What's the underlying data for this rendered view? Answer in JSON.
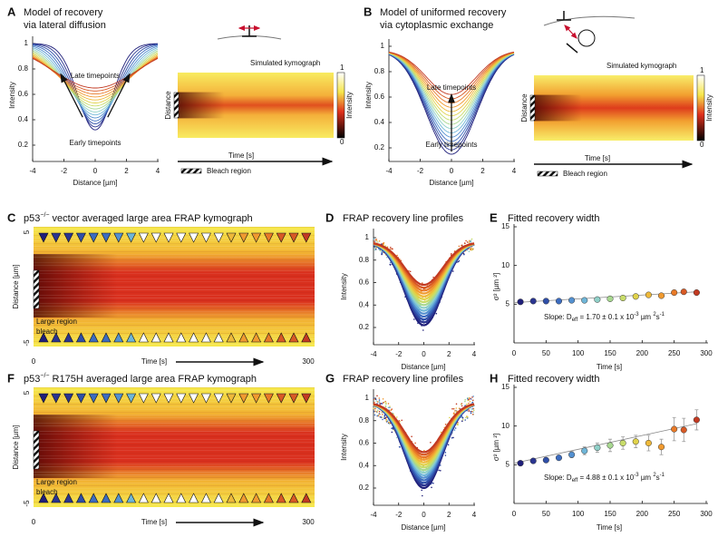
{
  "panels": {
    "A": {
      "label": "A",
      "title": [
        "Model of recovery",
        "via lateral diffusion"
      ],
      "y_label": "Intensity",
      "x_label": "Distance [µm]",
      "yticks": [
        1,
        0.8,
        0.6,
        0.4,
        0.2
      ],
      "xticks": [
        -4,
        -2,
        0,
        2,
        4
      ],
      "late": "Late timepoints",
      "early": "Early timepoints",
      "kymo_title": "Simulated kymograph",
      "kymo_y_label": "Distance",
      "colorbar_label": "Intensity",
      "colorbar_ticks": [
        1,
        0
      ],
      "time_label": "Time [s]",
      "bleach_label": "Bleach region"
    },
    "B": {
      "label": "B",
      "title": [
        "Model of uniformed recovery",
        "via cytoplasmic exchange"
      ],
      "y_label": "Intensity",
      "x_label": "Distance [µm]",
      "yticks": [
        1,
        0.8,
        0.6,
        0.4,
        0.2
      ],
      "xticks": [
        -4,
        -2,
        0,
        2,
        4
      ],
      "late": "Late timepoints",
      "early": "Early timepoints",
      "kymo_title": "Simulated kymograph",
      "kymo_y_label": "Distance",
      "colorbar_label": "Intensity",
      "colorbar_ticks": [
        1,
        0
      ],
      "time_label": "Time [s]",
      "bleach_label": "Bleach region"
    },
    "C": {
      "label": "C",
      "title": {
        "prefix": "p53",
        "sup": "−/−",
        "rest": " vector averaged large area FRAP kymograph"
      },
      "y_label": "Distance [µm]",
      "yticks": [
        5,
        -5
      ],
      "bleach_label": [
        "Large region",
        "bleach"
      ],
      "x_start": 0,
      "time_label": "Time [s]",
      "x_end": 300
    },
    "F": {
      "label": "F",
      "title": {
        "prefix": "p53",
        "sup": "−/−",
        "rest": " R175H averaged large area FRAP kymograph"
      },
      "y_label": "Distance [µm]",
      "yticks": [
        5,
        -5
      ],
      "bleach_label": [
        "Large region",
        "bleach"
      ],
      "x_start": 0,
      "time_label": "Time [s]",
      "x_end": 300
    },
    "D": {
      "label": "D",
      "title": "FRAP recovery line profiles",
      "y_label": "Intensity",
      "x_label": "Distance [µm]",
      "yticks": [
        1,
        0.8,
        0.6,
        0.4,
        0.2
      ],
      "xticks": [
        -4,
        -2,
        0,
        2,
        4
      ]
    },
    "G": {
      "label": "G",
      "title": "FRAP recovery line profiles",
      "y_label": "Intensity",
      "x_label": "Distance [µm]",
      "yticks": [
        1,
        0.8,
        0.6,
        0.4,
        0.2
      ],
      "xticks": [
        -4,
        -2,
        0,
        2,
        4
      ]
    }
  },
  "chart_data": [
    {
      "type": "scatter",
      "label": "E",
      "title": "Fitted recovery width",
      "x_label": "Time [s]",
      "y_label": "σ² [µm ²]",
      "x": [
        10,
        30,
        50,
        70,
        90,
        110,
        130,
        150,
        170,
        190,
        210,
        230,
        250,
        265,
        285
      ],
      "values": [
        5.3,
        5.4,
        5.4,
        5.4,
        5.5,
        5.5,
        5.6,
        5.7,
        5.8,
        6.0,
        6.2,
        6.1,
        6.5,
        6.6,
        6.5
      ],
      "fit": {
        "x": [
          0,
          285
        ],
        "values": [
          5.2,
          6.6
        ]
      },
      "xlim": [
        0,
        300
      ],
      "ylim": [
        0,
        15
      ],
      "xticks": [
        0,
        50,
        100,
        150,
        200,
        250,
        300
      ],
      "yticks": [
        5,
        10,
        15
      ],
      "slope_parts": [
        "Slope: D",
        "eff",
        " = 1.70 ± 0.1 x 10",
        "-3",
        " µm ",
        "2",
        "s",
        "-1"
      ],
      "colors": [
        "#1f1f7a",
        "#2a3590",
        "#2f4fa8",
        "#3c6cc0",
        "#5390d0",
        "#6fb6d8",
        "#8fd0c8",
        "#a8d890",
        "#c8dc6a",
        "#e0d24a",
        "#eeb93a",
        "#f09a30",
        "#e87a28",
        "#d85a25",
        "#c23a22"
      ]
    },
    {
      "type": "scatter",
      "label": "H",
      "title": "Fitted recovery width",
      "x_label": "Time [s]",
      "y_label": "σ² [µm ²]",
      "x": [
        10,
        30,
        50,
        70,
        90,
        110,
        130,
        150,
        170,
        190,
        210,
        230,
        250,
        265,
        285
      ],
      "values": [
        5.2,
        5.5,
        5.6,
        5.9,
        6.3,
        6.8,
        7.2,
        7.5,
        7.8,
        8.0,
        7.8,
        7.3,
        9.6,
        9.5,
        10.8
      ],
      "errors": [
        0.2,
        0.2,
        0.3,
        0.3,
        0.4,
        0.5,
        0.6,
        0.8,
        0.8,
        0.8,
        1.0,
        1.0,
        1.5,
        1.5,
        1.3
      ],
      "fit": {
        "x": [
          0,
          285
        ],
        "values": [
          5.2,
          10.3
        ]
      },
      "xlim": [
        0,
        300
      ],
      "ylim": [
        0,
        15
      ],
      "xticks": [
        0,
        50,
        100,
        150,
        200,
        250,
        300
      ],
      "yticks": [
        5,
        10,
        15
      ],
      "slope_parts": [
        "Slope: D",
        "eff",
        " = 4.88 ± 0.1 x 10",
        "-3",
        " µm ",
        "2",
        "s",
        "-1"
      ],
      "colors": [
        "#1f1f7a",
        "#2a3590",
        "#2f4fa8",
        "#3c6cc0",
        "#5390d0",
        "#6fb6d8",
        "#8fd0c8",
        "#a8d890",
        "#c8dc6a",
        "#e0d24a",
        "#eeb93a",
        "#f09a30",
        "#e87a28",
        "#d85a25",
        "#c23a22"
      ]
    }
  ]
}
